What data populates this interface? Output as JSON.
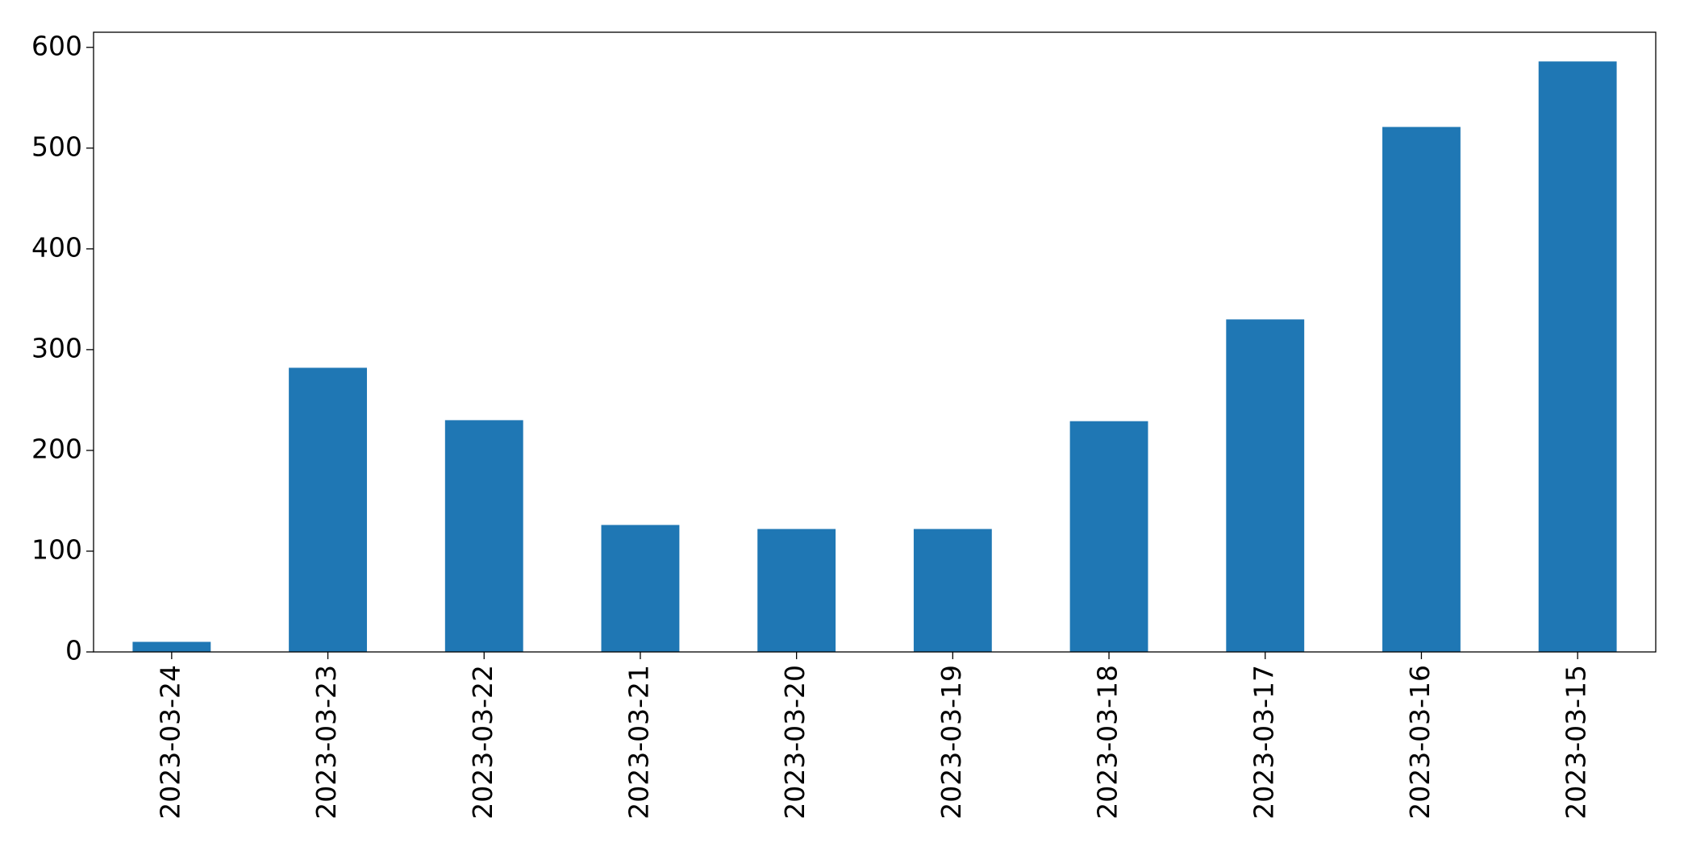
{
  "chart_data": {
    "type": "bar",
    "categories": [
      "2023-03-24",
      "2023-03-23",
      "2023-03-22",
      "2023-03-21",
      "2023-03-20",
      "2023-03-19",
      "2023-03-18",
      "2023-03-17",
      "2023-03-16",
      "2023-03-15"
    ],
    "values": [
      10,
      282,
      230,
      126,
      122,
      122,
      229,
      330,
      521,
      586
    ],
    "color": "#1f77b4",
    "ylim": [
      0,
      615
    ],
    "yticks": [
      0,
      100,
      200,
      300,
      400,
      500,
      600
    ],
    "grid": false
  }
}
